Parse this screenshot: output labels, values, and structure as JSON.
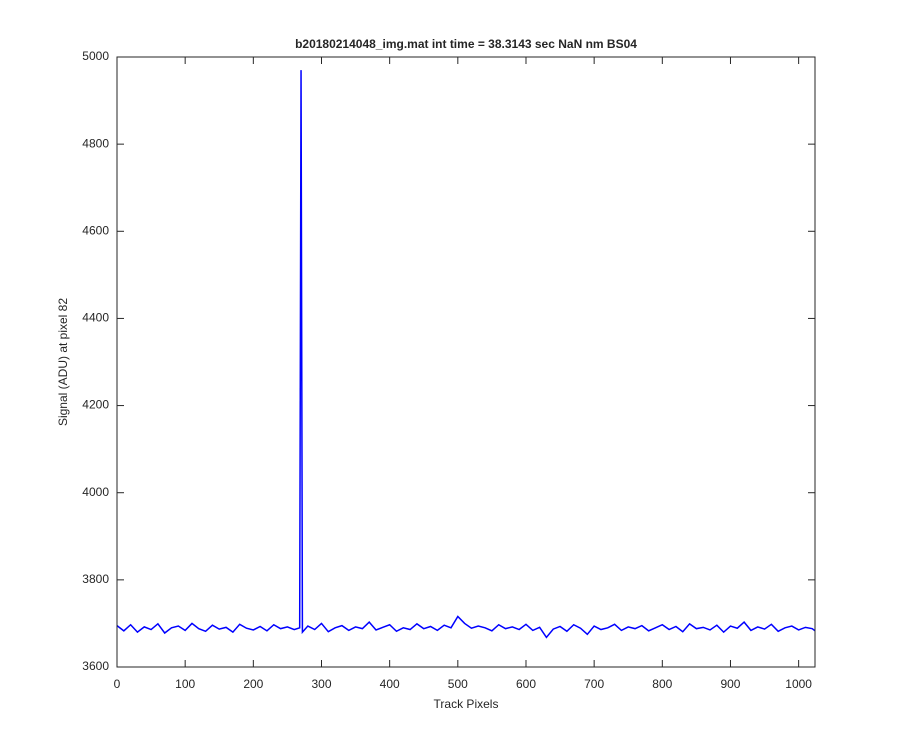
{
  "chart_data": {
    "type": "line",
    "title": "b20180214048_img.mat int time = 38.3143 sec  NaN nm BS04",
    "x_label": "Track Pixels",
    "y_label": "Signal (ADU) at pixel 82",
    "xlim": [
      0,
      1024
    ],
    "ylim": [
      3600,
      5000
    ],
    "xticks": [
      0,
      100,
      200,
      300,
      400,
      500,
      600,
      700,
      800,
      900,
      1000
    ],
    "yticks": [
      3600,
      3800,
      4000,
      4200,
      4400,
      4600,
      4800,
      5000
    ],
    "series": [
      {
        "color": "#0000ff",
        "x": [
          0,
          10,
          20,
          30,
          40,
          50,
          60,
          70,
          80,
          90,
          100,
          110,
          120,
          130,
          140,
          150,
          160,
          170,
          180,
          190,
          200,
          210,
          220,
          230,
          240,
          250,
          260,
          268,
          270,
          272,
          280,
          290,
          300,
          310,
          320,
          330,
          340,
          350,
          360,
          370,
          380,
          390,
          400,
          410,
          420,
          430,
          440,
          450,
          460,
          470,
          480,
          490,
          500,
          510,
          520,
          530,
          540,
          550,
          560,
          570,
          580,
          590,
          600,
          610,
          620,
          630,
          640,
          650,
          660,
          670,
          680,
          690,
          700,
          710,
          720,
          730,
          740,
          750,
          760,
          770,
          780,
          790,
          800,
          810,
          820,
          830,
          840,
          850,
          860,
          870,
          880,
          890,
          900,
          910,
          920,
          930,
          940,
          950,
          960,
          970,
          980,
          990,
          1000,
          1010,
          1020,
          1024
        ],
        "values": [
          3695,
          3683,
          3697,
          3680,
          3692,
          3686,
          3699,
          3678,
          3690,
          3694,
          3684,
          3700,
          3688,
          3682,
          3696,
          3687,
          3691,
          3680,
          3698,
          3689,
          3685,
          3693,
          3683,
          3697,
          3688,
          3692,
          3686,
          3690,
          4970,
          3680,
          3694,
          3686,
          3700,
          3681,
          3690,
          3695,
          3684,
          3692,
          3688,
          3703,
          3685,
          3691,
          3697,
          3682,
          3690,
          3686,
          3699,
          3688,
          3693,
          3684,
          3696,
          3690,
          3716,
          3700,
          3689,
          3694,
          3690,
          3683,
          3697,
          3688,
          3692,
          3686,
          3698,
          3684,
          3691,
          3668,
          3687,
          3693,
          3682,
          3697,
          3689,
          3675,
          3694,
          3686,
          3690,
          3698,
          3684,
          3692,
          3688,
          3695,
          3683,
          3690,
          3697,
          3686,
          3693,
          3681,
          3699,
          3688,
          3691,
          3685,
          3696,
          3680,
          3694,
          3689,
          3703,
          3684,
          3692,
          3687,
          3698,
          3682,
          3690,
          3694,
          3685,
          3691,
          3688,
          3683
        ]
      }
    ]
  }
}
